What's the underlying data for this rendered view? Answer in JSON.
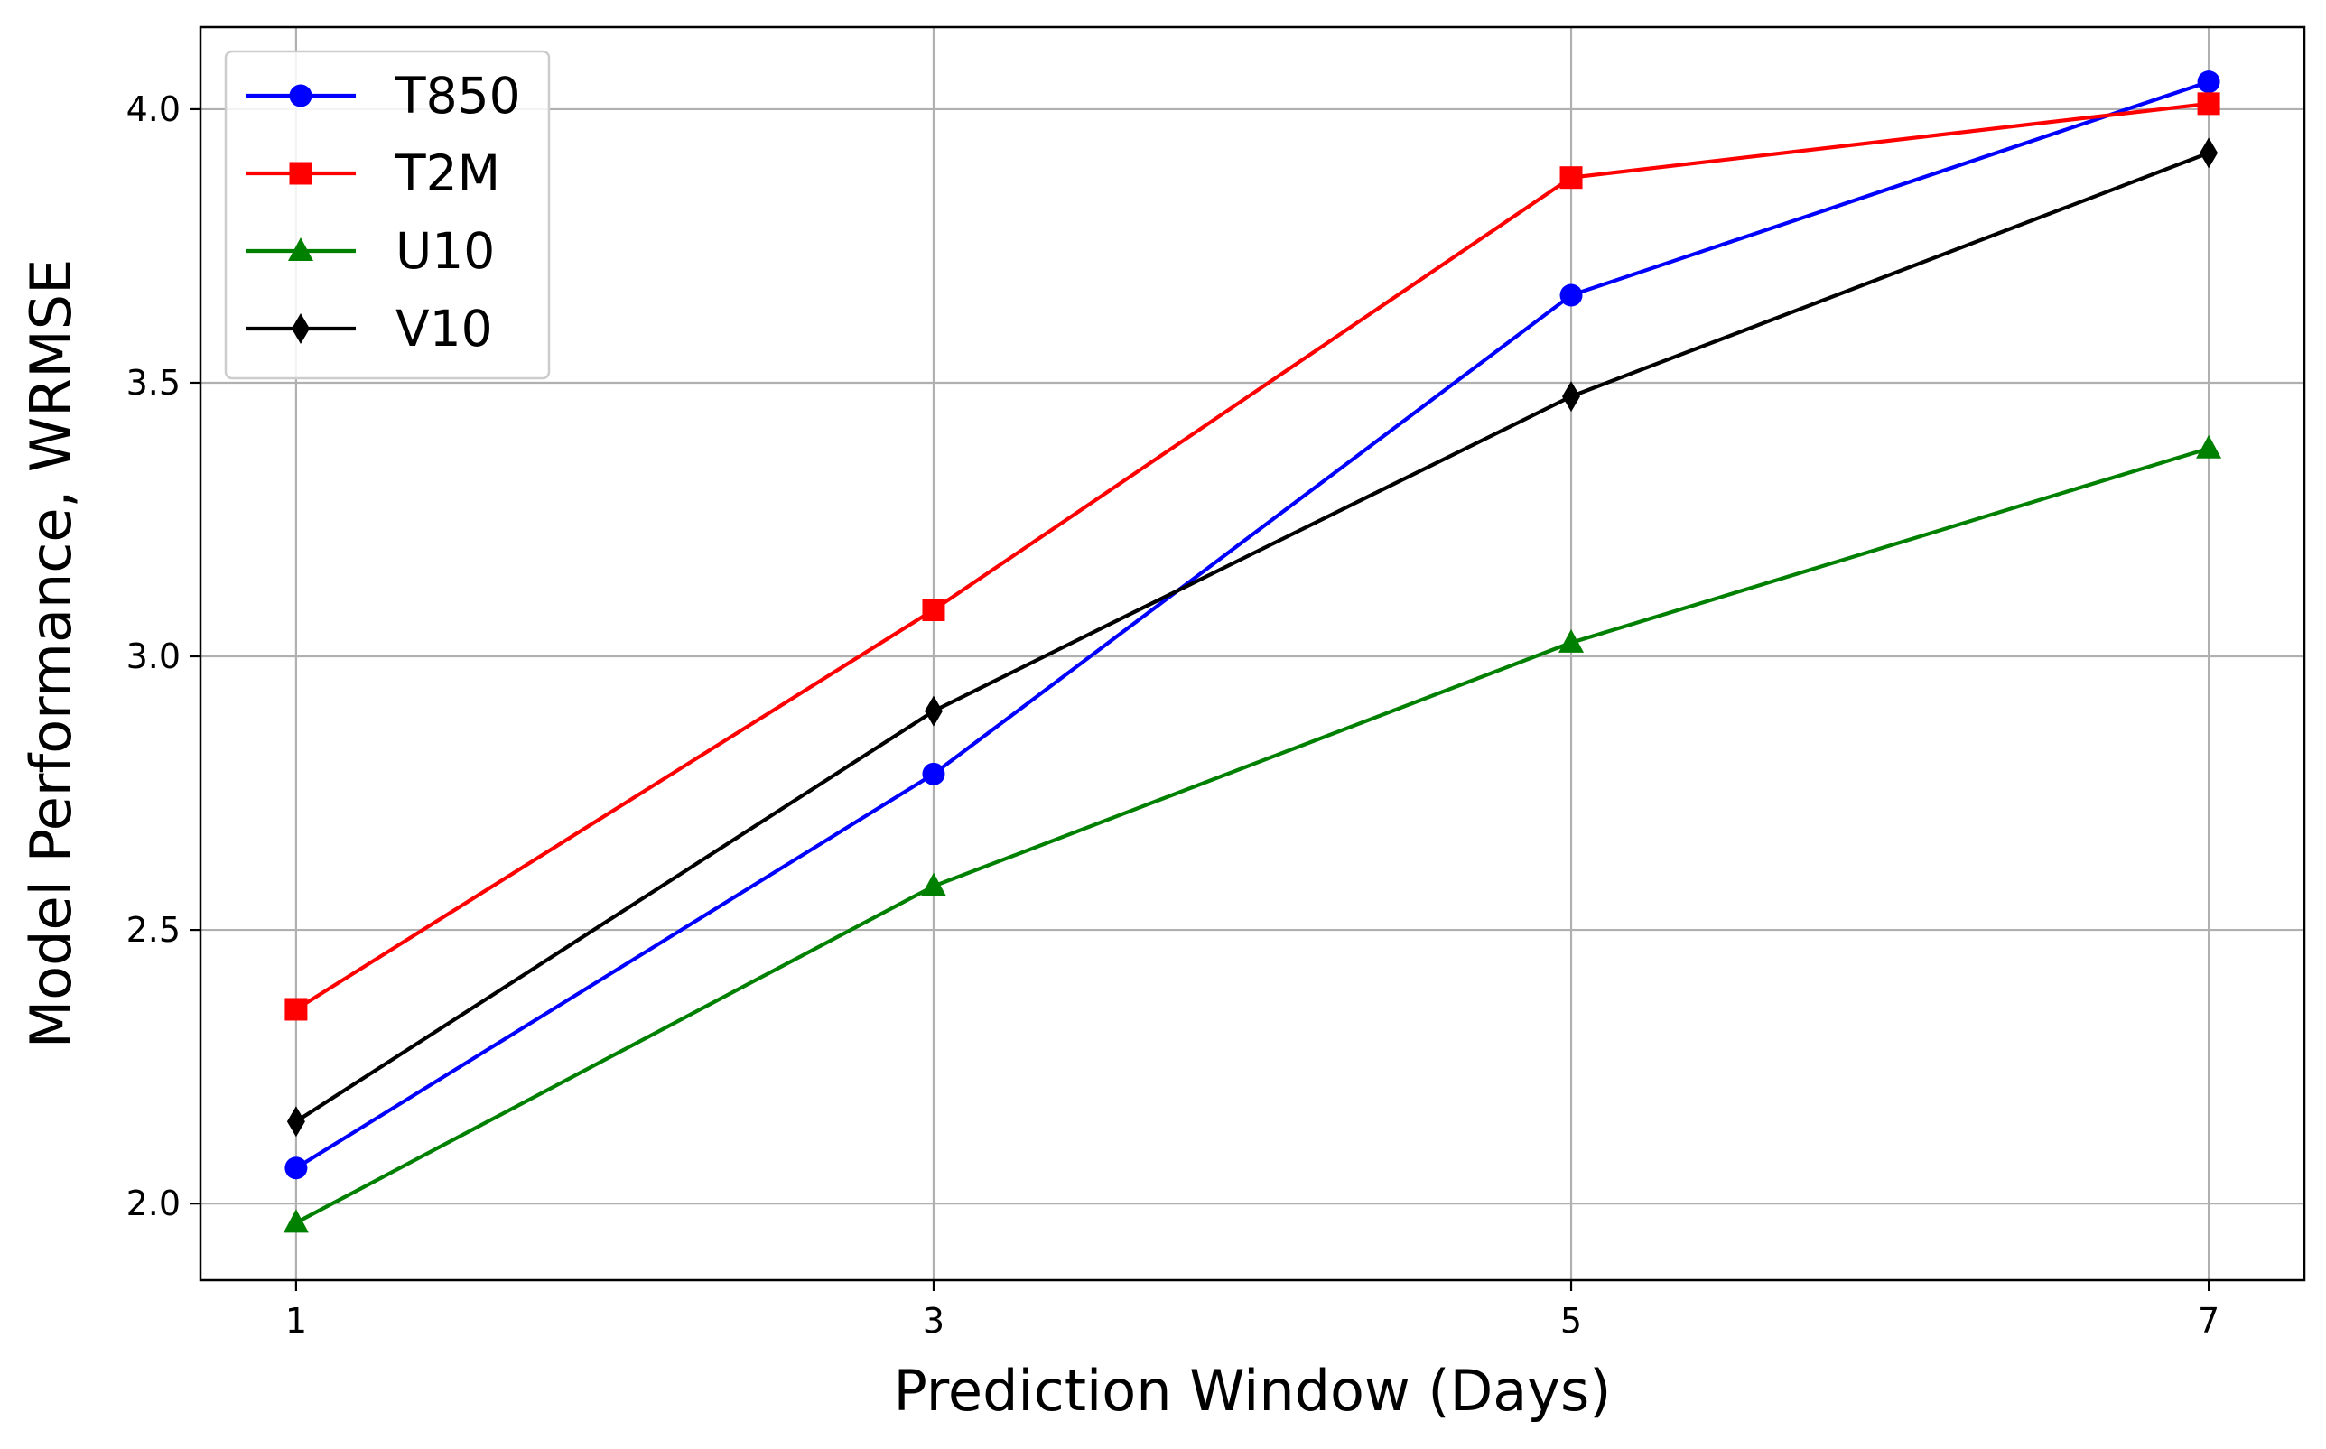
{
  "chart_data": {
    "type": "line",
    "title": "",
    "xlabel": "Prediction Window (Days)",
    "ylabel": "Model Performance, WRMSE",
    "x": [
      1,
      3,
      5,
      7
    ],
    "xlim": [
      0.7,
      7.3
    ],
    "ylim": [
      1.86,
      4.15
    ],
    "xticks": [
      "1",
      "3",
      "5",
      "7"
    ],
    "yticks": [
      "2.0",
      "2.5",
      "3.0",
      "3.5",
      "4.0"
    ],
    "grid": true,
    "legend_position": "top-left",
    "series": [
      {
        "name": "T850",
        "color": "#0000ff",
        "marker": "circle",
        "values": [
          2.065,
          2.785,
          3.66,
          4.05
        ]
      },
      {
        "name": "T2M",
        "color": "#ff0000",
        "marker": "square",
        "values": [
          2.355,
          3.085,
          3.875,
          4.01
        ]
      },
      {
        "name": "U10",
        "color": "#008000",
        "marker": "triangle",
        "values": [
          1.965,
          2.58,
          3.025,
          3.38
        ]
      },
      {
        "name": "V10",
        "color": "#000000",
        "marker": "diamond",
        "values": [
          2.15,
          2.9,
          3.475,
          3.92
        ]
      }
    ]
  }
}
